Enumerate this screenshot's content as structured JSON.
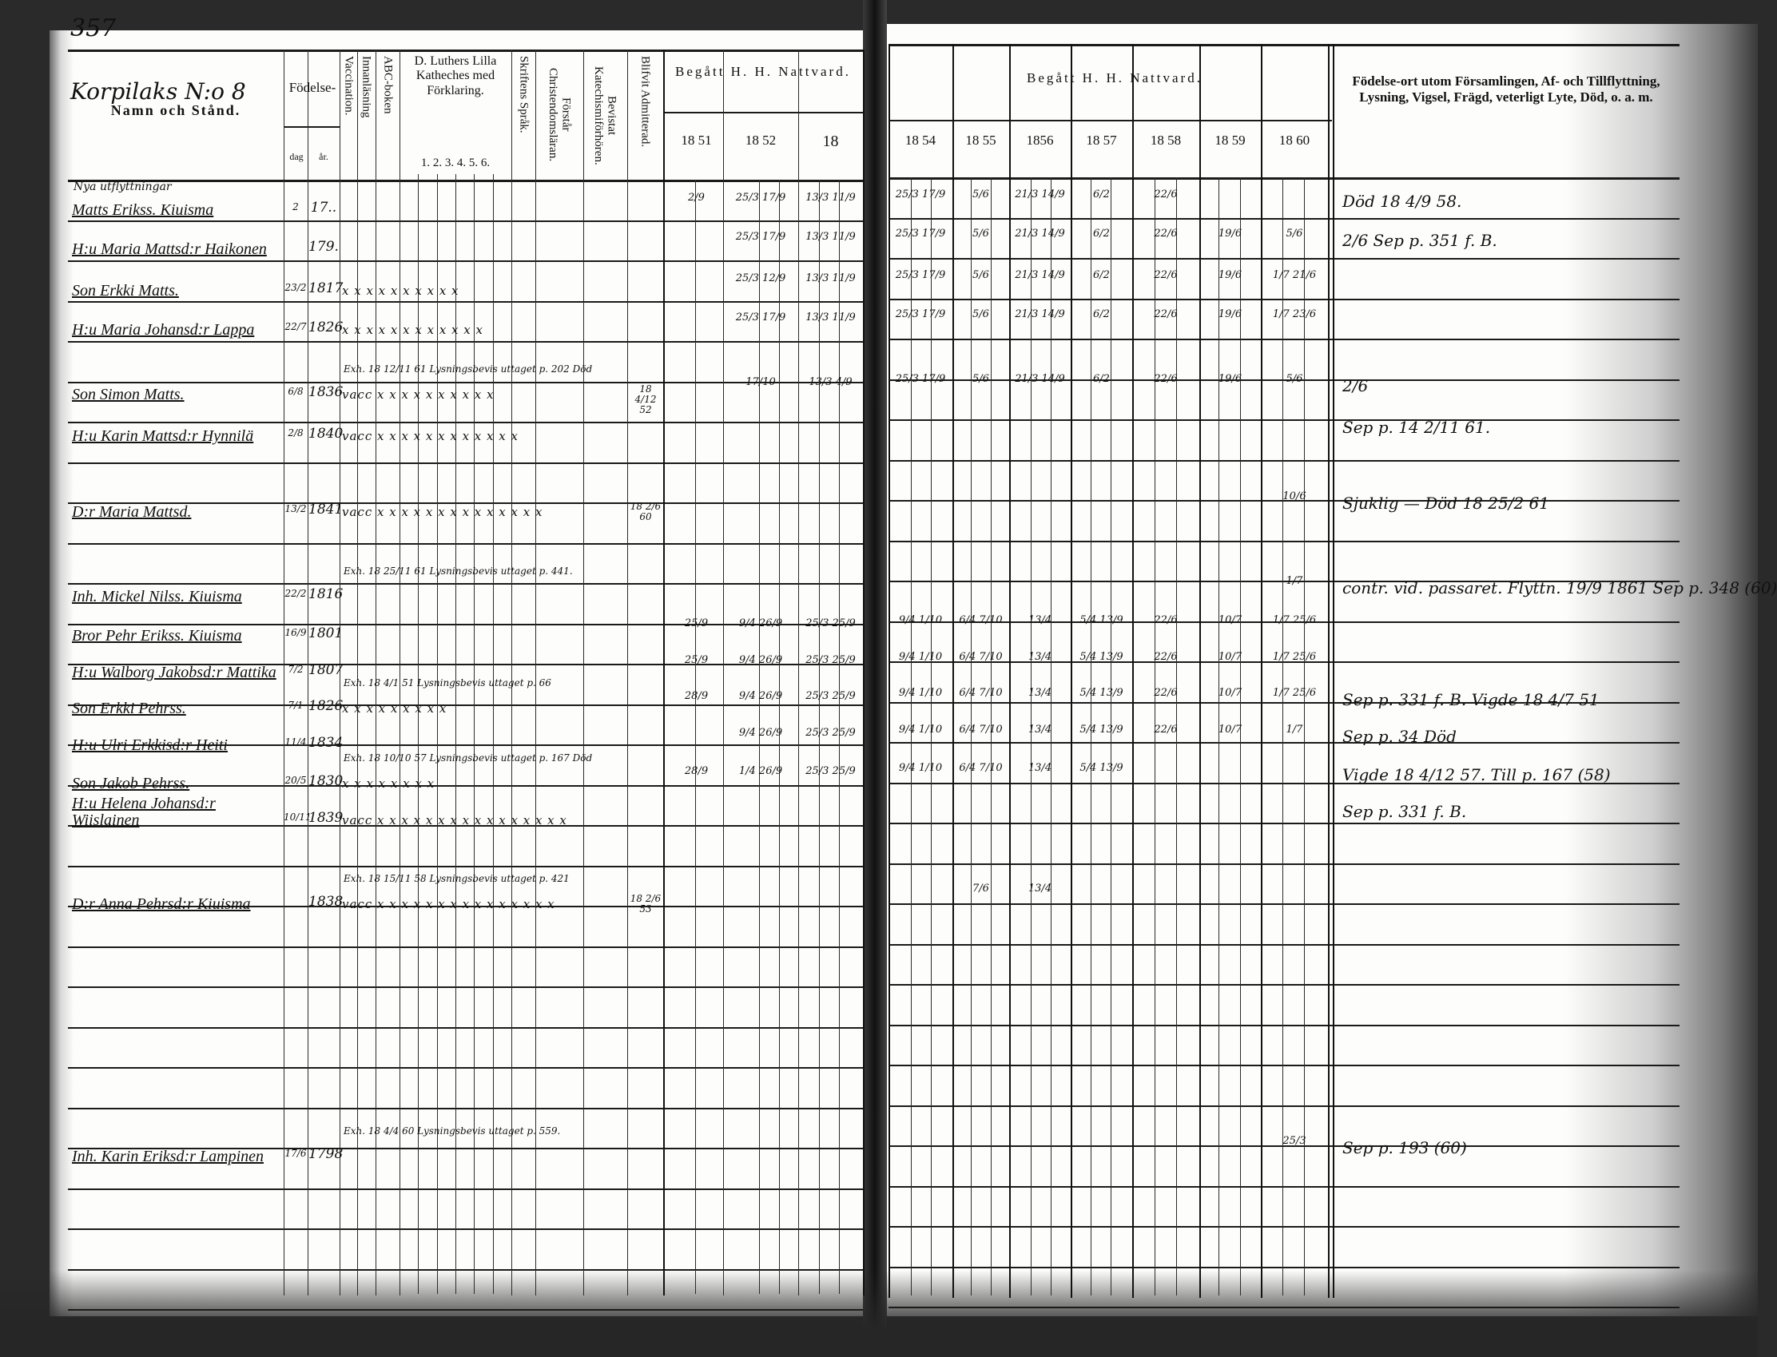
{
  "page_number": "357",
  "left_header": {
    "farm": "Korpilaks N:o 8",
    "name_col": "Namn och Stånd.",
    "birth": "Födelse-",
    "birth_day": "dag",
    "birth_year": "år.",
    "vaccination": "Vaccination.",
    "reading": "Innanläsning",
    "abc": "ABC-boken",
    "luther": "D. Luthers Lilla Katheches med Förklaring.",
    "luther_parts": "1. 2. 3. 4. 5. 6.",
    "scripture": "Skriftens Språk.",
    "understands": "Förstår Christendomsläran.",
    "attended": "Bevistat Katechismiförhören.",
    "admitted": "Blifvit Admitterad.",
    "communion": "Begått H. H. Nattvard.",
    "years": [
      "18 51",
      "18 52",
      "18"
    ]
  },
  "right_header": {
    "communion": "Begått H. H. Nattvard.",
    "years": [
      "18 54",
      "18 55",
      "1856",
      "18 57",
      "18 58",
      "18 59",
      "18 60"
    ],
    "remarks": "Födelse-ort utom Församlingen, Af- och Tillflyttning, Lysning, Vigsel, Frägd, veterligt Lyte, Död, o. a. m."
  },
  "section_note": "Nya utflyttningar",
  "entries": [
    {
      "name": "Matts Erikss. Kiuisma",
      "dag": "2",
      "ar": "17..",
      "notes": "",
      "marks": "",
      "admitted": "",
      "cl": [
        "2/9",
        "25/3 17/9",
        "13/3 11/9"
      ],
      "cr": [
        "25/3 17/9",
        "5/6",
        "21/3 14/9",
        "6/2",
        "22/6",
        "",
        ""
      ],
      "remark": "Död 18 4/9 58."
    },
    {
      "name": "H:u Maria Mattsd:r Haikonen",
      "dag": "",
      "ar": "179.",
      "notes": "",
      "marks": "",
      "admitted": "",
      "cl": [
        "",
        "25/3 17/9",
        "13/3 11/9"
      ],
      "cr": [
        "25/3 17/9",
        "5/6",
        "21/3 14/9",
        "6/2",
        "22/6",
        "19/6",
        "5/6"
      ],
      "remark": "2/6  Sep p. 351 f. B."
    },
    {
      "name": "Son Erkki Matts.",
      "dag": "23/2",
      "ar": "1817",
      "notes": "",
      "marks": "x  x x x x x x x x x",
      "admitted": "",
      "cl": [
        "",
        "25/3 12/9",
        "13/3 11/9"
      ],
      "cr": [
        "25/3 17/9",
        "5/6",
        "21/3 14/9",
        "6/2",
        "22/6",
        "19/6",
        "1/7 21/6"
      ],
      "remark": ""
    },
    {
      "name": "H:u Maria Johansd:r Lappa",
      "dag": "22/7",
      "ar": "1826",
      "notes": "",
      "marks": "x  x x x x x x x x x x x",
      "admitted": "",
      "cl": [
        "",
        "25/3 17/9",
        "13/3 11/9"
      ],
      "cr": [
        "25/3 17/9",
        "5/6",
        "21/3 14/9",
        "6/2",
        "22/6",
        "19/6",
        "1/7 23/6"
      ],
      "remark": ""
    },
    {
      "name": "Son Simon Matts.",
      "dag": "6/8",
      "ar": "1836",
      "notes": "Exh. 18 12/11 61 Lysningsbevis uttaget p. 202 Död",
      "marks": "vacc x x x x x x x x x x",
      "admitted": "18 4/12 52",
      "cl": [
        "",
        "17/10",
        "13/3 4/9"
      ],
      "cr": [
        "25/3 17/9",
        "5/6",
        "21/3 14/9",
        "6/2",
        "22/6",
        "19/6",
        "5/6"
      ],
      "remark": "2/6"
    },
    {
      "name": "H:u Karin Mattsd:r Hynnilä",
      "dag": "2/8",
      "ar": "1840",
      "notes": "",
      "marks": "vacc x x x x x x x x x x x x",
      "admitted": "",
      "cl": [
        "",
        "",
        ""
      ],
      "cr": [
        "",
        "",
        "",
        "",
        "",
        "",
        ""
      ],
      "remark": "Sep p. 14 2/11 61."
    },
    {
      "name": "D:r Maria Mattsd.",
      "dag": "13/2",
      "ar": "1841",
      "notes": "",
      "marks": "vacc x x x x x x x x x x x x x x",
      "admitted": "18 2/6 60",
      "cl": [
        "",
        "",
        ""
      ],
      "cr": [
        "",
        "",
        "",
        "",
        "",
        "",
        "10/6"
      ],
      "remark": "Sjuklig — Död 18 25/2 61"
    },
    {
      "name": "Inh. Mickel Nilss. Kiuisma",
      "dag": "22/2",
      "ar": "1816",
      "notes": "Exh. 18 25/11 61 Lysningsbevis uttaget p. 441.",
      "marks": "",
      "admitted": "",
      "cl": [
        "",
        "",
        ""
      ],
      "cr": [
        "",
        "",
        "",
        "",
        "",
        "",
        "1/7"
      ],
      "remark": "contr. vid. passaret. Flyttn. 19/9 1861 Sep p. 348 (60)"
    },
    {
      "name": "Bror Pehr Erikss. Kiuisma",
      "dag": "16/9",
      "ar": "1801",
      "notes": "",
      "marks": "",
      "admitted": "",
      "cl": [
        "25/9",
        "9/4 26/9",
        "25/3 25/9"
      ],
      "cr": [
        "9/4 1/10",
        "6/4 7/10",
        "13/4",
        "5/4 13/9",
        "22/6",
        "10/7",
        "1/7 25/6"
      ],
      "remark": ""
    },
    {
      "name": "H:u Walborg Jakobsd:r Mattika",
      "dag": "7/2",
      "ar": "1807",
      "notes": "",
      "marks": "",
      "admitted": "",
      "cl": [
        "25/9",
        "9/4 26/9",
        "25/3 25/9"
      ],
      "cr": [
        "9/4 1/10",
        "6/4 7/10",
        "13/4",
        "5/4 13/9",
        "22/6",
        "10/7",
        "1/7 25/6"
      ],
      "remark": ""
    },
    {
      "name": "Son Erkki Pehrss.",
      "dag": "7/1",
      "ar": "1826",
      "notes": "Exh. 18 4/1 51 Lysningsbevis uttaget p. 66",
      "marks": "x x x x x x x x x",
      "admitted": "",
      "cl": [
        "28/9",
        "9/4 26/9",
        "25/3 25/9"
      ],
      "cr": [
        "9/4 1/10",
        "6/4 7/10",
        "13/4",
        "5/4 13/9",
        "22/6",
        "10/7",
        "1/7 25/6"
      ],
      "remark": "Sep p. 331 f. B. Vigde 18 4/7 51"
    },
    {
      "name": "H:u Ulri Erkkisd:r Heiti",
      "dag": "11/4",
      "ar": "1834",
      "notes": "",
      "marks": "",
      "admitted": "",
      "cl": [
        "",
        "9/4 26/9",
        "25/3 25/9"
      ],
      "cr": [
        "9/4 1/10",
        "6/4 7/10",
        "13/4",
        "5/4 13/9",
        "22/6",
        "10/7",
        "1/7"
      ],
      "remark": "Sep p. 34 Död"
    },
    {
      "name": "Son Jakob Pehrss.",
      "dag": "20/5",
      "ar": "1830",
      "notes": "Exh. 18 10/10 57 Lysningsbevis uttaget p. 167 Död",
      "marks": "x x x x x x x x",
      "admitted": "",
      "cl": [
        "28/9",
        "1/4 26/9",
        "25/3 25/9"
      ],
      "cr": [
        "9/4 1/10",
        "6/4 7/10",
        "13/4",
        "5/4 13/9",
        "",
        "",
        ""
      ],
      "remark": "Vigde 18 4/12 57. Till p. 167 (58)"
    },
    {
      "name": "H:u Helena Johansd:r Wiislainen",
      "dag": "10/11",
      "ar": "1839",
      "notes": "",
      "marks": "vacc x x x x x x x x x x x x x x   x   x",
      "admitted": "",
      "cl": [
        "",
        "",
        ""
      ],
      "cr": [
        "",
        "",
        "",
        "",
        "",
        "",
        ""
      ],
      "remark": "Sep p. 331 f. B."
    },
    {
      "name": "D:r Anna Pehrsd:r Kiuisma",
      "dag": "",
      "ar": "1838",
      "notes": "Exh. 18 15/11 58 Lysningsbevis uttaget p. 421",
      "marks": "vacc x x x x x x x x x x x x x   x   x",
      "admitted": "18 2/6 53",
      "cl": [
        "",
        "",
        ""
      ],
      "cr": [
        "",
        "7/6",
        "13/4",
        "",
        "",
        "",
        ""
      ],
      "remark": ""
    },
    {
      "name": "Inh. Karin Eriksd:r Lampinen",
      "dag": "17/6",
      "ar": "1798",
      "notes": "Exh. 18 4/4 60 Lysningsbevis uttaget p. 559.",
      "marks": "",
      "admitted": "",
      "cl": [
        "",
        "",
        ""
      ],
      "cr": [
        "",
        "",
        "",
        "",
        "",
        "",
        "25/3"
      ],
      "remark": "Sep p. 193 (60)"
    }
  ]
}
